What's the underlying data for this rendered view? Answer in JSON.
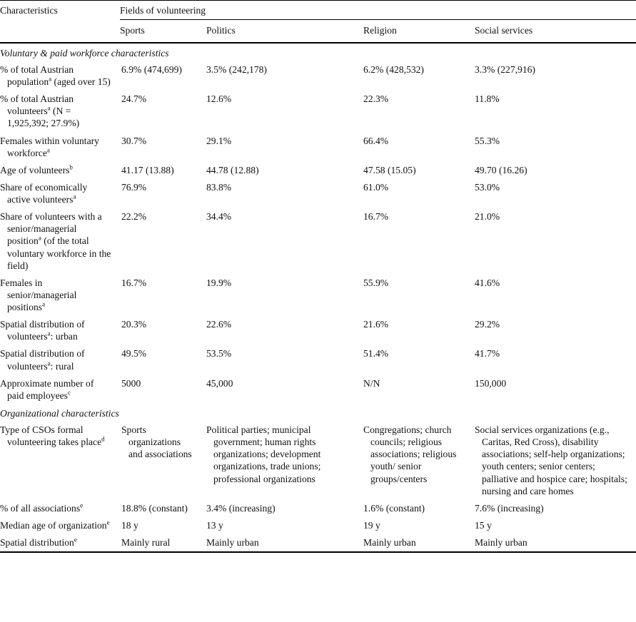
{
  "table": {
    "characteristics_header": "Characteristics",
    "group_header": "Fields of volunteering",
    "columns": [
      "Sports",
      "Politics",
      "Religion",
      "Social services"
    ],
    "sections": [
      {
        "title": "Voluntary & paid workforce characteristics",
        "rows": [
          {
            "label_pre": "% of total Austrian population",
            "label_sup": "a",
            "label_post": " (aged over 15)",
            "values": [
              "6.9% (474,699)",
              "3.5% (242,178)",
              "6.2% (428,532)",
              "3.3% (227,916)"
            ]
          },
          {
            "label_pre": "% of total Austrian volunteers",
            "label_sup": "a",
            "label_post": " (N = 1,925,392; 27.9%)",
            "values": [
              "24.7%",
              "12.6%",
              "22.3%",
              "11.8%"
            ]
          },
          {
            "label_pre": "Females within voluntary workforce",
            "label_sup": "a",
            "label_post": "",
            "values": [
              "30.7%",
              "29.1%",
              "66.4%",
              "55.3%"
            ]
          },
          {
            "label_pre": "Age of volunteers",
            "label_sup": "b",
            "label_post": "",
            "values": [
              "41.17 (13.88)",
              "44.78 (12.88)",
              "47.58 (15.05)",
              "49.70 (16.26)"
            ]
          },
          {
            "label_pre": "Share of economically active volunteers",
            "label_sup": "a",
            "label_post": "",
            "values": [
              "76.9%",
              "83.8%",
              "61.0%",
              "53.0%"
            ]
          },
          {
            "label_pre": "Share of volunteers with a senior/managerial position",
            "label_sup": "a",
            "label_post": " (of the total voluntary workforce in the field)",
            "values": [
              "22.2%",
              "34.4%",
              "16.7%",
              "21.0%"
            ]
          },
          {
            "label_pre": "Females in senior/managerial positions",
            "label_sup": "a",
            "label_post": "",
            "values": [
              "16.7%",
              "19.9%",
              "55.9%",
              "41.6%"
            ]
          },
          {
            "label_pre": "Spatial distribution of volunteers",
            "label_sup": "a",
            "label_post": ": urban",
            "values": [
              "20.3%",
              "22.6%",
              "21.6%",
              "29.2%"
            ]
          },
          {
            "label_pre": "Spatial distribution of volunteers",
            "label_sup": "a",
            "label_post": ": rural",
            "values": [
              "49.5%",
              "53.5%",
              "51.4%",
              "41.7%"
            ]
          },
          {
            "label_pre": "Approximate number of paid employees",
            "label_sup": "c",
            "label_post": "",
            "values": [
              "5000",
              "45,000",
              "N/N",
              "150,000"
            ]
          }
        ]
      },
      {
        "title": "Organizational characteristics",
        "rows": [
          {
            "label_pre": "Type of CSOs formal volunteering takes place",
            "label_sup": "d",
            "label_post": "",
            "values": [
              "Sports organizations and associations",
              "Political parties; municipal government; human rights organizations; development organizations, trade unions; professional organizations",
              "Congregations; church councils; religious associations; religious youth/ senior groups/centers",
              "Social services organizations (e.g., Caritas, Red Cross), disability associations; self-help organizations; youth centers; senior centers; palliative and hospice care; hospitals; nursing and care homes"
            ]
          },
          {
            "label_pre": "% of all associations",
            "label_sup": "e",
            "label_post": "",
            "values": [
              "18.8% (constant)",
              "3.4% (increasing)",
              "1.6% (constant)",
              "7.6% (increasing)"
            ]
          },
          {
            "label_pre": "Median age of organization",
            "label_sup": "e",
            "label_post": "",
            "values": [
              "18 y",
              "13 y",
              "19 y",
              "15 y"
            ]
          },
          {
            "label_pre": "Spatial distribution",
            "label_sup": "e",
            "label_post": "",
            "values": [
              "Mainly rural",
              "Mainly urban",
              "Mainly urban",
              "Mainly urban"
            ]
          }
        ]
      }
    ]
  },
  "colors": {
    "background": "#ffffff",
    "text": "#111111",
    "rule": "#000000"
  }
}
